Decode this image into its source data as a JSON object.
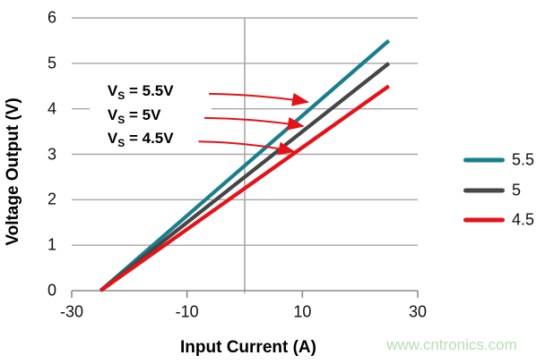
{
  "watermark": "www.cntronics.com",
  "chart_data": {
    "type": "line",
    "title": "",
    "xlabel": "Input Current (A)",
    "ylabel": "Voltage Output (V)",
    "xlim": [
      -30,
      30
    ],
    "ylim": [
      0,
      6
    ],
    "xticks": [
      "-30",
      "-10",
      "10",
      "30"
    ],
    "xtick_values": [
      -30,
      -10,
      10,
      30
    ],
    "yticks": [
      "0",
      "1",
      "2",
      "3",
      "4",
      "5",
      "6"
    ],
    "ytick_values": [
      0,
      1,
      2,
      3,
      4,
      5,
      6
    ],
    "grid": {
      "y_values": [
        1,
        2,
        3,
        4,
        5,
        6
      ],
      "x_values": [
        0
      ]
    },
    "legend_position": "right",
    "series": [
      {
        "name": "5.5",
        "color": "#1a7e8c",
        "x": [
          -25,
          25
        ],
        "y": [
          0,
          5.5
        ]
      },
      {
        "name": "5",
        "color": "#464646",
        "x": [
          -25,
          25
        ],
        "y": [
          0,
          5.0
        ]
      },
      {
        "name": "4.5",
        "color": "#e51219",
        "x": [
          -25,
          25
        ],
        "y": [
          0,
          4.5
        ]
      }
    ],
    "annotations": [
      {
        "label": {
          "base": "V",
          "sub": "S",
          "rest": " = 5.5V"
        },
        "label_pos": {
          "x": -23.8,
          "y": 4.37
        },
        "arrow_from": {
          "x": -6.2,
          "y": 4.33
        },
        "arrow_to": {
          "x": 10.9,
          "y": 4.15
        },
        "arrow_color": "#e51219"
      },
      {
        "label": {
          "base": "V",
          "sub": "S",
          "rest": " = 5V"
        },
        "label_pos": {
          "x": -23.8,
          "y": 3.84
        },
        "arrow_from": {
          "x": -7.0,
          "y": 3.8
        },
        "arrow_to": {
          "x": 10.1,
          "y": 3.62
        },
        "arrow_color": "#e51219"
      },
      {
        "label": {
          "base": "V",
          "sub": "S",
          "rest": " = 4.5V"
        },
        "label_pos": {
          "x": -23.8,
          "y": 3.32
        },
        "arrow_from": {
          "x": -8.0,
          "y": 3.28
        },
        "arrow_to": {
          "x": 8.5,
          "y": 3.06
        },
        "arrow_color": "#e51219"
      }
    ],
    "colors": {
      "gridline": "#a6a6a6",
      "axis_line": "#8c8c8c",
      "text": "#111111"
    }
  }
}
